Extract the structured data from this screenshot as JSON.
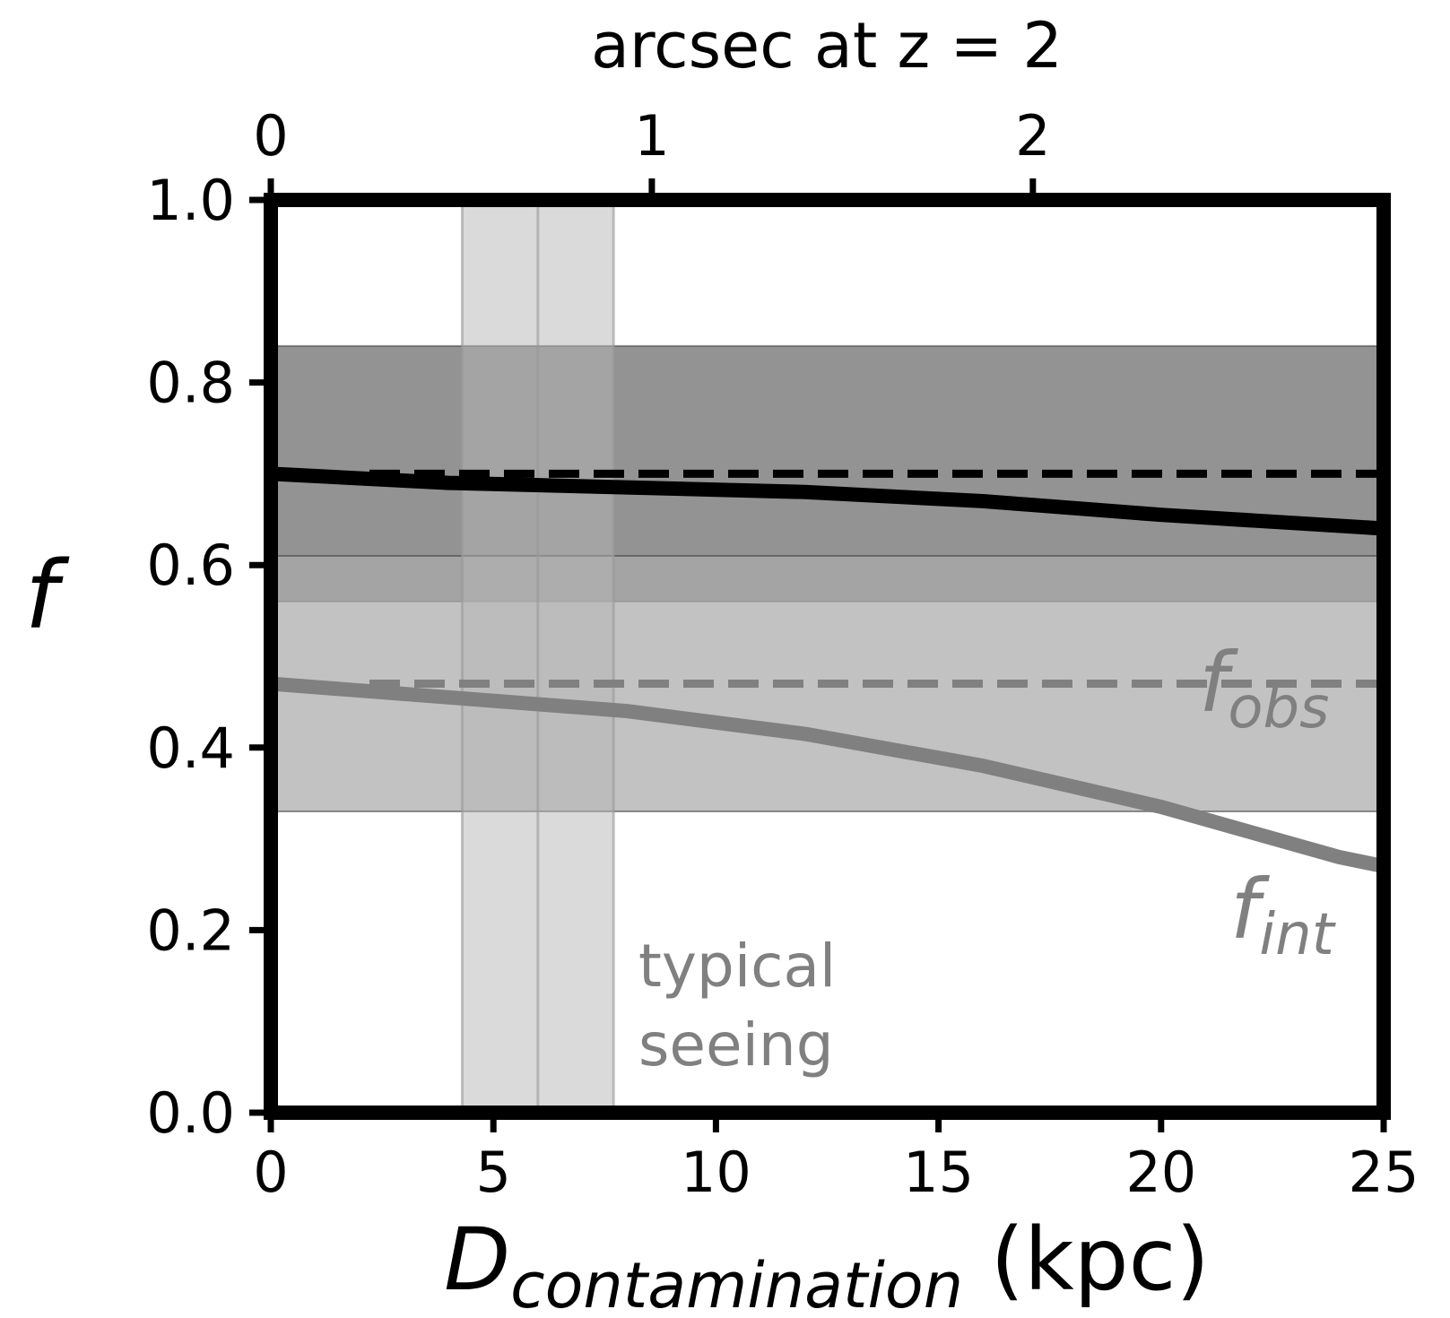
{
  "chart_data": {
    "type": "line",
    "xlabel": {
      "main": "D",
      "sub": "contamination",
      "unit": " (kpc)"
    },
    "ylabel": "f",
    "top_axis_label": "arcsec at z = 2",
    "xlim": [
      0,
      25
    ],
    "ylim": [
      0,
      1.0
    ],
    "x_ticks": [
      0,
      5,
      10,
      15,
      20,
      25
    ],
    "x_tick_labels": [
      "0",
      "5",
      "10",
      "15",
      "20",
      "25"
    ],
    "y_ticks": [
      0,
      0.2,
      0.4,
      0.6,
      0.8,
      1.0
    ],
    "y_tick_labels": [
      "0.0",
      "0.2",
      "0.4",
      "0.6",
      "0.8",
      "1.0"
    ],
    "top_ticks_kpc": [
      0,
      8.56,
      17.12
    ],
    "top_tick_labels": [
      "0",
      "1",
      "2"
    ],
    "series": [
      {
        "key": "black_curve",
        "color": "#000000",
        "x": [
          0,
          4,
          8,
          12,
          16,
          20,
          25
        ],
        "y": [
          0.7,
          0.69,
          0.685,
          0.68,
          0.67,
          0.655,
          0.64
        ]
      },
      {
        "key": "gray_curve",
        "label": "f",
        "label_sub": "int",
        "color": "#808080",
        "x": [
          0,
          4,
          8,
          12,
          16,
          20,
          24,
          25
        ],
        "y": [
          0.47,
          0.455,
          0.44,
          0.415,
          0.38,
          0.335,
          0.28,
          0.27
        ]
      }
    ],
    "reference_lines": [
      {
        "key": "black_dashed",
        "y": 0.7,
        "color": "#000000"
      },
      {
        "key": "gray_dashed",
        "y": 0.47,
        "color": "#808080",
        "label": "f",
        "label_sub": "obs"
      }
    ],
    "horizontal_bands": [
      {
        "key": "upper_band",
        "y0": 0.56,
        "y1": 0.84,
        "color": "#6a6a6a"
      },
      {
        "key": "lower_band",
        "y0": 0.33,
        "y1": 0.61,
        "color": "#aaaaaa"
      }
    ],
    "vertical_band": {
      "x0": 4.3,
      "x1": 7.7,
      "center": 6.0,
      "label_lines": [
        "typical",
        "seeing"
      ]
    }
  }
}
